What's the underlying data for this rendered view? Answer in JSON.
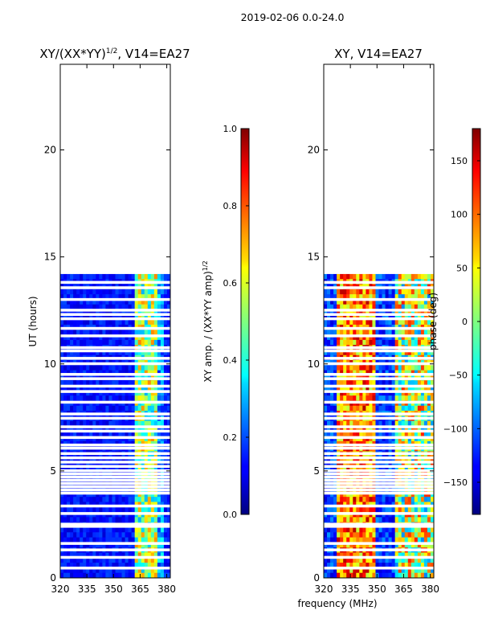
{
  "figure": {
    "suptitle": "2019-02-06 0.0-24.0",
    "xlabel": "frequency (MHz)"
  },
  "chart_data": [
    {
      "type": "heatmap",
      "title": "XY/(XX*YY)",
      "title_exponent": "1/2",
      "title_suffix": ", V14=EA27",
      "xlabel": "",
      "ylabel": "UT (hours)",
      "xlim": [
        320,
        382
      ],
      "ylim": [
        0,
        24
      ],
      "xticks": [
        "320",
        "335",
        "350",
        "365",
        "380"
      ],
      "yticks": [
        "0",
        "5",
        "10",
        "15",
        "20"
      ],
      "xtick_values": [
        320,
        335,
        350,
        365,
        380
      ],
      "ytick_values": [
        0,
        5,
        10,
        15,
        20
      ],
      "data_coverage_hours": [
        0,
        14.2
      ],
      "colormap": "jet",
      "colorbar": {
        "label": "XY amp. / (XX*YY amp)",
        "label_exponent": "1/2",
        "range": [
          0.0,
          1.0
        ],
        "ticks": [
          "0.0",
          "0.2",
          "0.4",
          "0.6",
          "0.8",
          "1.0"
        ],
        "tick_values": [
          0.0,
          0.2,
          0.4,
          0.6,
          0.8,
          1.0
        ]
      }
    },
    {
      "type": "heatmap",
      "title": "XY, V14=EA27",
      "xlabel": "",
      "ylabel": "",
      "xlim": [
        320,
        382
      ],
      "ylim": [
        0,
        24
      ],
      "xticks": [
        "320",
        "335",
        "350",
        "365",
        "380"
      ],
      "yticks": [
        "0",
        "5",
        "10",
        "15",
        "20"
      ],
      "xtick_values": [
        320,
        335,
        350,
        365,
        380
      ],
      "ytick_values": [
        0,
        5,
        10,
        15,
        20
      ],
      "data_coverage_hours": [
        0,
        14.2
      ],
      "colormap": "jet",
      "colorbar": {
        "label": "phase (deg)",
        "range": [
          -180,
          180
        ],
        "ticks": [
          "150",
          "100",
          "50",
          "0",
          "−50",
          "−100",
          "−150"
        ],
        "tick_values": [
          150,
          100,
          50,
          0,
          -50,
          -100,
          -150
        ]
      }
    }
  ],
  "gap_rows_hours": [
    0.45,
    0.95,
    1.3,
    1.6,
    2.4,
    2.5,
    3.0,
    3.35,
    3.95,
    4.1,
    4.25,
    4.4,
    4.55,
    4.7,
    4.85,
    5.0,
    5.2,
    5.4,
    5.6,
    5.8,
    6.05,
    6.2,
    6.55,
    6.85,
    7.05,
    7.45,
    7.65,
    8.2,
    8.7,
    8.95,
    9.3,
    9.5,
    10.0,
    10.25,
    10.6,
    10.75,
    11.3,
    11.65,
    12.1,
    12.3,
    12.5,
    13.0,
    13.55,
    13.8
  ]
}
